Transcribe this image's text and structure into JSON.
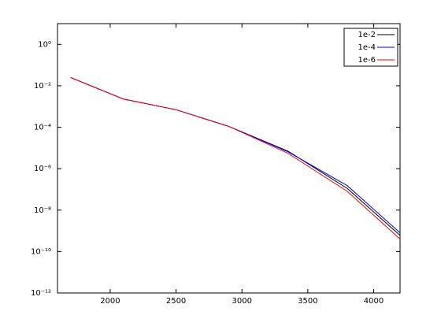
{
  "chart_data": {
    "type": "line",
    "yscale": "log",
    "x": [
      1700,
      2100,
      2500,
      2900,
      3350,
      3800,
      4200
    ],
    "series": [
      {
        "name": "1e-2",
        "color": "#000000",
        "values": [
          0.025,
          0.0023,
          0.0007,
          0.00011,
          7e-06,
          1.1e-07,
          6e-10
        ]
      },
      {
        "name": "1e-4",
        "color": "#0000ff",
        "values": [
          0.025,
          0.0023,
          0.0007,
          0.00011,
          6.5e-06,
          1.5e-07,
          8e-10
        ]
      },
      {
        "name": "1e-6",
        "color": "#ff0000",
        "values": [
          0.025,
          0.0023,
          0.0007,
          0.00011,
          5.5e-06,
          8e-08,
          4e-10
        ]
      }
    ],
    "xlim": [
      1600,
      4200
    ],
    "xticks": [
      2000,
      2500,
      3000,
      3500,
      4000
    ],
    "ylim": [
      1e-12,
      10
    ],
    "yticks": [
      {
        "value": 1,
        "label": "10⁰"
      },
      {
        "value": 0.01,
        "label": "10⁻²"
      },
      {
        "value": 0.0001,
        "label": "10⁻⁴"
      },
      {
        "value": 1e-06,
        "label": "10⁻⁶"
      },
      {
        "value": 1e-08,
        "label": "10⁻⁸"
      },
      {
        "value": 1e-10,
        "label": "10⁻¹⁰"
      },
      {
        "value": 1e-12,
        "label": "10⁻¹²"
      }
    ],
    "legend": "upper right",
    "grid": false
  }
}
